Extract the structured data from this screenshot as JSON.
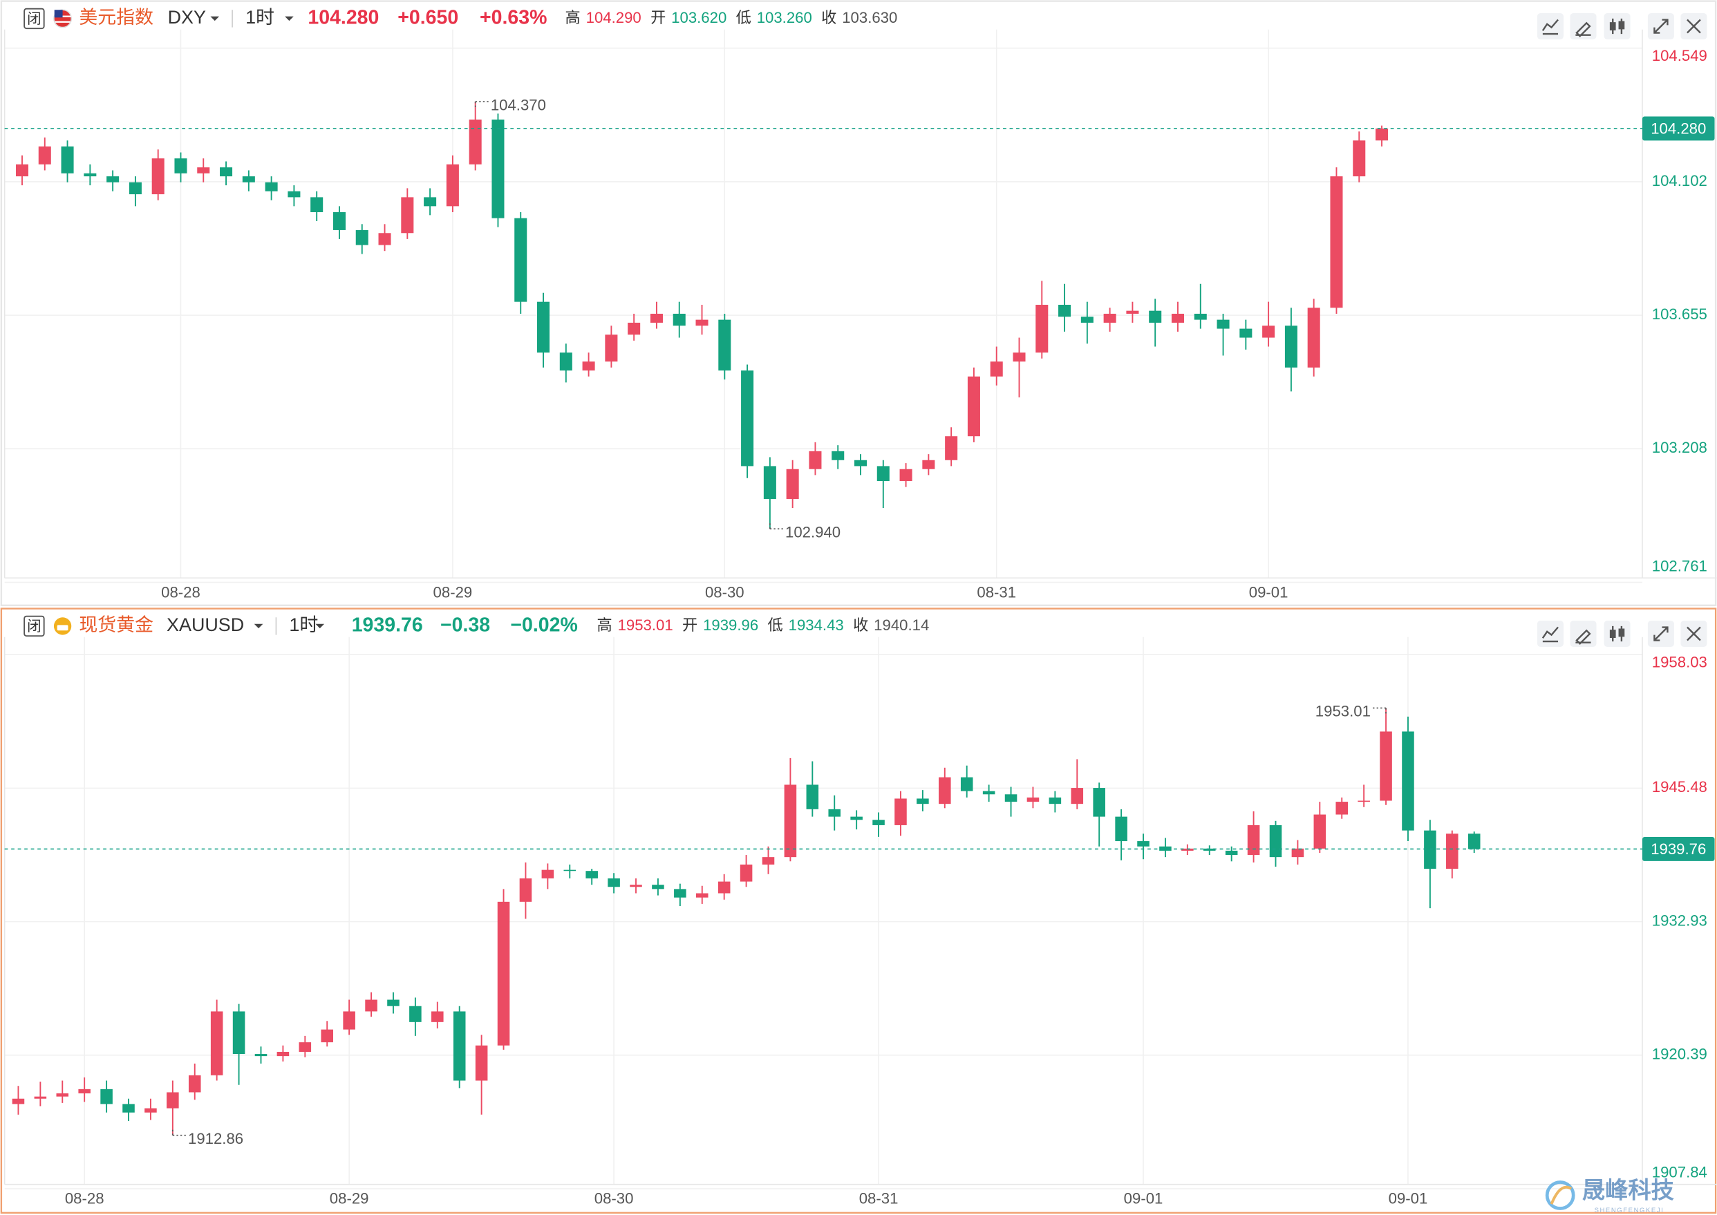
{
  "chart_data": [
    {
      "type": "candlestick",
      "closed_label": "闭",
      "name": "美元指数",
      "symbol": "DXY",
      "interval": "1时",
      "change": "+0.650",
      "change_pct": "+0.63%",
      "change_direction": "up",
      "stats": [
        {
          "label": "高",
          "value": "104.290",
          "color": "#e8334a"
        },
        {
          "label": "开",
          "value": "103.620",
          "color": "#14a37f"
        },
        {
          "label": "低",
          "value": "103.260",
          "color": "#14a37f"
        },
        {
          "label": "收",
          "value": "103.630",
          "color": "#555555"
        }
      ],
      "categories": [
        null,
        null,
        null,
        null,
        null,
        null,
        null,
        "08-28",
        null,
        null,
        null,
        null,
        null,
        null,
        null,
        null,
        null,
        null,
        null,
        "08-29",
        null,
        null,
        null,
        null,
        null,
        null,
        null,
        null,
        null,
        null,
        null,
        "08-30",
        null,
        null,
        null,
        null,
        null,
        null,
        null,
        null,
        null,
        null,
        null,
        "08-31",
        null,
        null,
        null,
        null,
        null,
        null,
        null,
        null,
        null,
        null,
        null,
        "09-01",
        null,
        null,
        null,
        null,
        null
      ],
      "open": [
        104.12,
        104.16,
        104.22,
        104.13,
        104.12,
        104.1,
        104.06,
        104.18,
        104.13,
        104.15,
        104.12,
        104.1,
        104.07,
        104.05,
        104.0,
        103.94,
        103.89,
        103.93,
        104.05,
        104.02,
        104.16,
        104.31,
        103.98,
        103.7,
        103.53,
        103.47,
        103.5,
        103.59,
        103.63,
        103.66,
        103.62,
        103.64,
        103.47,
        103.15,
        103.04,
        103.14,
        103.2,
        103.17,
        103.15,
        103.1,
        103.14,
        103.17,
        103.25,
        103.45,
        103.5,
        103.53,
        103.69,
        103.65,
        103.63,
        103.66,
        103.67,
        103.63,
        103.66,
        103.64,
        103.61,
        103.58,
        103.62,
        103.48,
        103.68,
        104.12,
        104.24
      ],
      "high": [
        104.19,
        104.25,
        104.24,
        104.16,
        104.14,
        104.12,
        104.21,
        104.2,
        104.18,
        104.17,
        104.14,
        104.12,
        104.09,
        104.07,
        104.02,
        103.96,
        103.96,
        104.08,
        104.08,
        104.19,
        104.37,
        104.33,
        104.0,
        103.73,
        103.56,
        103.53,
        103.62,
        103.66,
        103.7,
        103.7,
        103.69,
        103.66,
        103.49,
        103.18,
        103.17,
        103.23,
        103.22,
        103.19,
        103.17,
        103.16,
        103.19,
        103.28,
        103.48,
        103.55,
        103.58,
        103.77,
        103.76,
        103.7,
        103.68,
        103.7,
        103.71,
        103.7,
        103.76,
        103.66,
        103.64,
        103.7,
        103.68,
        103.71,
        104.15,
        104.27,
        104.29
      ],
      "low": [
        104.09,
        104.14,
        104.1,
        104.09,
        104.07,
        104.02,
        104.04,
        104.1,
        104.1,
        104.09,
        104.07,
        104.04,
        104.02,
        103.97,
        103.91,
        103.86,
        103.87,
        103.91,
        103.99,
        104.0,
        104.14,
        103.95,
        103.66,
        103.48,
        103.43,
        103.45,
        103.48,
        103.57,
        103.61,
        103.58,
        103.59,
        103.44,
        103.11,
        102.94,
        103.01,
        103.12,
        103.14,
        103.12,
        103.01,
        103.08,
        103.12,
        103.15,
        103.23,
        103.42,
        103.38,
        103.51,
        103.6,
        103.56,
        103.6,
        103.63,
        103.55,
        103.6,
        103.61,
        103.52,
        103.54,
        103.55,
        103.4,
        103.45,
        103.66,
        104.1,
        104.22
      ],
      "close": [
        104.16,
        104.22,
        104.13,
        104.12,
        104.1,
        104.06,
        104.18,
        104.13,
        104.15,
        104.12,
        104.1,
        104.07,
        104.05,
        104.0,
        103.94,
        103.89,
        103.93,
        104.05,
        104.02,
        104.16,
        104.31,
        103.98,
        103.7,
        103.53,
        103.47,
        103.5,
        103.59,
        103.63,
        103.66,
        103.62,
        103.64,
        103.47,
        103.15,
        103.04,
        103.14,
        103.2,
        103.17,
        103.15,
        103.1,
        103.14,
        103.17,
        103.25,
        103.45,
        103.5,
        103.53,
        103.69,
        103.65,
        103.63,
        103.66,
        103.67,
        103.63,
        103.66,
        103.64,
        103.61,
        103.58,
        103.62,
        103.48,
        103.68,
        104.12,
        104.24,
        104.28
      ],
      "high_label": "104.370",
      "low_label": "102.940",
      "price_line": {
        "value": 104.28,
        "label": "104.280"
      },
      "ylim": [
        102.761,
        104.549
      ],
      "yticks": [
        104.549,
        104.102,
        103.655,
        103.208,
        102.761
      ],
      "up_color": "#eb4b63",
      "down_color": "#14a37f",
      "grid": true
    },
    {
      "type": "candlestick",
      "closed_label": "闭",
      "name": "现货黄金",
      "symbol": "XAUUSD",
      "interval": "1时",
      "change": "−0.38",
      "change_pct": "−0.02%",
      "change_direction": "down",
      "stats": [
        {
          "label": "高",
          "value": "1953.01",
          "color": "#e8334a"
        },
        {
          "label": "开",
          "value": "1939.96",
          "color": "#14a37f"
        },
        {
          "label": "低",
          "value": "1934.43",
          "color": "#14a37f"
        },
        {
          "label": "收",
          "value": "1940.14",
          "color": "#555555"
        }
      ],
      "categories": [
        null,
        null,
        null,
        "08-28",
        null,
        null,
        null,
        null,
        null,
        null,
        null,
        null,
        null,
        null,
        null,
        "08-29",
        null,
        null,
        null,
        null,
        null,
        null,
        null,
        null,
        null,
        null,
        null,
        "08-30",
        null,
        null,
        null,
        null,
        null,
        null,
        null,
        null,
        null,
        null,
        null,
        "08-31",
        null,
        null,
        null,
        null,
        null,
        null,
        null,
        null,
        null,
        null,
        null,
        "09-01",
        null,
        null,
        null,
        null,
        null,
        null,
        null,
        null,
        null,
        null,
        null,
        "09-01",
        null,
        null,
        null
      ],
      "open": [
        1915.8,
        1916.3,
        1916.5,
        1916.8,
        1917.2,
        1915.8,
        1915.0,
        1915.4,
        1916.9,
        1918.5,
        1924.5,
        1920.5,
        1920.3,
        1920.7,
        1921.6,
        1922.8,
        1924.5,
        1925.6,
        1925.0,
        1923.5,
        1924.5,
        1918.0,
        1921.3,
        1934.8,
        1937.0,
        1937.8,
        1937.7,
        1937.0,
        1936.2,
        1936.4,
        1936.0,
        1935.2,
        1935.6,
        1936.7,
        1938.3,
        1939.0,
        1945.8,
        1943.5,
        1942.8,
        1942.5,
        1942.0,
        1944.5,
        1944.0,
        1946.5,
        1945.2,
        1944.9,
        1944.2,
        1944.6,
        1944.0,
        1945.5,
        1942.8,
        1940.5,
        1940.0,
        1939.6,
        1939.8,
        1939.6,
        1939.2,
        1942.0,
        1939.0,
        1939.8,
        1943.0,
        1944.2,
        1944.3,
        1950.8,
        1941.5,
        1937.9,
        1941.2
      ],
      "high": [
        1917.5,
        1917.9,
        1918.0,
        1918.3,
        1918.0,
        1916.3,
        1916.3,
        1918.0,
        1919.6,
        1925.6,
        1925.2,
        1921.2,
        1921.3,
        1922.2,
        1923.6,
        1925.6,
        1926.3,
        1926.3,
        1925.8,
        1925.4,
        1925.0,
        1922.3,
        1936.0,
        1938.5,
        1938.4,
        1938.3,
        1937.9,
        1937.5,
        1937.0,
        1937.0,
        1936.5,
        1936.3,
        1937.4,
        1939.2,
        1940.0,
        1948.3,
        1948.0,
        1944.8,
        1943.4,
        1943.2,
        1945.2,
        1945.3,
        1947.4,
        1947.6,
        1945.8,
        1945.6,
        1945.6,
        1945.2,
        1948.2,
        1946.0,
        1943.5,
        1941.2,
        1940.8,
        1940.2,
        1940.1,
        1940.0,
        1943.3,
        1942.4,
        1940.6,
        1944.2,
        1944.6,
        1945.8,
        1953.01,
        1952.2,
        1942.5,
        1941.5,
        1941.4
      ],
      "low": [
        1914.8,
        1915.6,
        1915.9,
        1916.0,
        1915.0,
        1914.2,
        1914.3,
        1912.86,
        1916.2,
        1918.0,
        1917.6,
        1919.6,
        1919.8,
        1920.2,
        1921.2,
        1922.3,
        1924.0,
        1924.3,
        1922.2,
        1922.9,
        1917.3,
        1914.8,
        1920.9,
        1933.2,
        1936.0,
        1937.0,
        1936.4,
        1935.6,
        1935.6,
        1935.4,
        1934.4,
        1934.6,
        1935.0,
        1936.2,
        1937.4,
        1938.6,
        1942.8,
        1941.5,
        1941.6,
        1940.9,
        1941.0,
        1943.3,
        1943.6,
        1944.6,
        1944.2,
        1942.8,
        1943.6,
        1943.2,
        1943.5,
        1940.0,
        1938.7,
        1938.8,
        1939.0,
        1939.2,
        1939.2,
        1938.6,
        1938.5,
        1938.1,
        1938.3,
        1939.4,
        1942.6,
        1943.7,
        1943.9,
        1940.5,
        1934.2,
        1937.0,
        1939.4
      ],
      "close": [
        1916.3,
        1916.5,
        1916.8,
        1917.2,
        1915.8,
        1915.0,
        1915.4,
        1916.9,
        1918.5,
        1924.5,
        1920.5,
        1920.3,
        1920.7,
        1921.6,
        1922.8,
        1924.5,
        1925.6,
        1925.0,
        1923.5,
        1924.5,
        1918.0,
        1921.3,
        1934.8,
        1937.0,
        1937.8,
        1937.7,
        1937.0,
        1936.2,
        1936.4,
        1936.0,
        1935.2,
        1935.6,
        1936.7,
        1938.3,
        1939.0,
        1945.8,
        1943.5,
        1942.8,
        1942.5,
        1942.0,
        1944.5,
        1944.0,
        1946.5,
        1945.2,
        1944.9,
        1944.2,
        1944.6,
        1944.0,
        1945.5,
        1942.8,
        1940.5,
        1940.0,
        1939.6,
        1939.8,
        1939.6,
        1939.2,
        1942.0,
        1939.0,
        1939.8,
        1943.0,
        1944.2,
        1944.3,
        1950.8,
        1941.5,
        1937.9,
        1941.2,
        1939.76
      ],
      "high_label": "1953.01",
      "low_label": "1912.86",
      "price_line": {
        "value": 1939.76,
        "label": "1939.76"
      },
      "ylim": [
        1907.84,
        1958.03
      ],
      "yticks": [
        1958.03,
        1945.48,
        1932.93,
        1920.39,
        1907.84
      ],
      "up_color": "#eb4b63",
      "down_color": "#14a37f",
      "grid": true
    }
  ],
  "watermark": {
    "title": "晟峰科技",
    "subtitle": "SHENGFENGKEJI"
  }
}
